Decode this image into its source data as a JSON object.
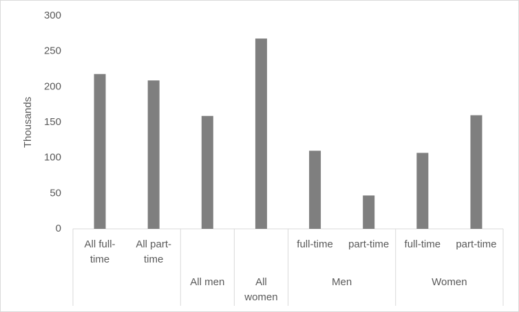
{
  "chart_data": {
    "type": "bar",
    "y_label": "Thousands",
    "color": "#7f7f7f",
    "ylim": [
      0,
      300
    ],
    "yticks": [
      0,
      50,
      100,
      150,
      200,
      250,
      300
    ],
    "grid": false,
    "groups": [
      {
        "label": null,
        "categories": [
          "All full-time",
          "All part-time"
        ],
        "values": [
          218,
          209
        ]
      },
      {
        "label": "All men",
        "categories": [
          null
        ],
        "values": [
          159
        ]
      },
      {
        "label": "All women",
        "categories": [
          null
        ],
        "values": [
          268
        ]
      },
      {
        "label": "Men",
        "categories": [
          "full-time",
          "part-time"
        ],
        "values": [
          110,
          47
        ]
      },
      {
        "label": "Women",
        "categories": [
          "full-time",
          "part-time"
        ],
        "values": [
          107,
          160
        ]
      }
    ]
  }
}
